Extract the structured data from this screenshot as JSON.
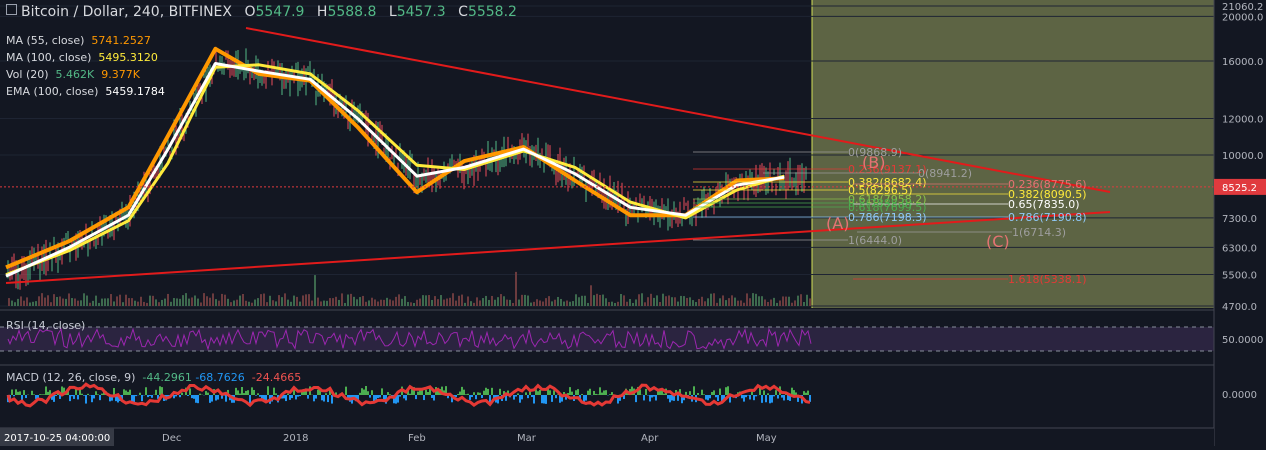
{
  "header": {
    "title": "Bitcoin / Dollar, 240, BITFINEX",
    "ohlc": [
      {
        "k": "O",
        "v": "5547.9"
      },
      {
        "k": "H",
        "v": "5588.8"
      },
      {
        "k": "L",
        "v": "5457.3"
      },
      {
        "k": "C",
        "v": "5558.2"
      }
    ]
  },
  "indicators": [
    {
      "label": "MA (55, close)",
      "values": [
        "5741.2527"
      ],
      "colors": [
        "#ff9800"
      ]
    },
    {
      "label": "MA (100, close)",
      "values": [
        "5495.3120"
      ],
      "colors": [
        "#ffeb3b"
      ]
    },
    {
      "label": "Vol (20)",
      "values": [
        "5.462K",
        "9.377K"
      ],
      "colors": [
        "#53b987",
        "#ff9800"
      ]
    },
    {
      "label": "EMA (100, close)",
      "values": [
        "5459.1784"
      ],
      "colors": [
        "#ffffff"
      ]
    }
  ],
  "rsi": {
    "label": "RSI (14, close)",
    "value_label": "50.0000"
  },
  "macd": {
    "label": "MACD (12, 26, close, 9)",
    "values": [
      "-44.2961",
      "-68.7626",
      "-24.4665"
    ],
    "colors": [
      "#53b987",
      "#2196f3",
      "#ef5350"
    ],
    "zero_label": "0.0000"
  },
  "price_axis": {
    "ticks": [
      "21060.2",
      "20000.0",
      "16000.0",
      "12000.0",
      "10000.0",
      "7300.0",
      "6300.0",
      "5500.0",
      "4700.0"
    ],
    "last_price": "8525.2"
  },
  "time_axis": {
    "first_label": "2017-10-25 04:00:00",
    "labels": [
      "Dec",
      "2018",
      "Feb",
      "Mar",
      "Apr",
      "May"
    ]
  },
  "fib_labels": [
    "0(9868.9)",
    "0.236(9137.1)",
    "0(8941.2)",
    "0.382(8682.4)",
    "0.236(8775.6)",
    "0.5(8296.5)",
    "0.382(8090.5)",
    "0.618(7958.2)",
    "0.5(7888.9)",
    "0.65(7835.0)",
    "0.618(7699.5)",
    "0.786(7198.3)",
    "0.786(7190.8)",
    "1(6714.3)",
    "1(6444.0)",
    "1.618(5338.1)"
  ],
  "wave_labels": [
    "(B)",
    "(A)",
    "(C)"
  ],
  "colors": {
    "background": "#131722",
    "accent": "#ff9800",
    "projection_fill": "#5d6444",
    "trendline": "#e21b1b",
    "last_price": "#e03a3e"
  },
  "chart_data": {
    "type": "candlestick",
    "symbol": "Bitcoin / Dollar",
    "interval": "240",
    "exchange": "BITFINEX",
    "y_scale": "log",
    "ylim": [
      4700,
      21060.2
    ],
    "x_range": [
      "2017-10-25",
      "2018-05-17"
    ],
    "series": [
      {
        "name": "MA (55, close)",
        "x": [
          "2017-10-25",
          "2017-11-10",
          "2017-11-25",
          "2017-12-05",
          "2017-12-17",
          "2017-12-28",
          "2018-01-10",
          "2018-01-22",
          "2018-02-06",
          "2018-02-18",
          "2018-03-05",
          "2018-03-18",
          "2018-04-01",
          "2018-04-15",
          "2018-04-28",
          "2018-05-10"
        ],
        "values": [
          5700,
          6500,
          7700,
          11000,
          17000,
          15000,
          14500,
          11500,
          8300,
          9700,
          10400,
          8800,
          7400,
          7400,
          8800,
          8900
        ]
      },
      {
        "name": "MA (100, close)",
        "x": [
          "2017-10-25",
          "2017-11-10",
          "2017-11-25",
          "2017-12-05",
          "2017-12-17",
          "2017-12-28",
          "2018-01-10",
          "2018-01-22",
          "2018-02-06",
          "2018-02-18",
          "2018-03-05",
          "2018-03-18",
          "2018-04-01",
          "2018-04-15",
          "2018-04-28",
          "2018-05-10"
        ],
        "values": [
          5500,
          6200,
          7200,
          9600,
          15500,
          15700,
          15000,
          12500,
          9500,
          9300,
          10200,
          9400,
          7900,
          7300,
          8400,
          9000
        ]
      },
      {
        "name": "EMA (100, close)",
        "x": [
          "2017-10-25",
          "2017-11-10",
          "2017-11-25",
          "2017-12-05",
          "2017-12-17",
          "2017-12-28",
          "2018-01-10",
          "2018-01-22",
          "2018-02-06",
          "2018-02-18",
          "2018-03-05",
          "2018-03-18",
          "2018-04-01",
          "2018-04-15",
          "2018-04-28",
          "2018-05-10"
        ],
        "values": [
          5459,
          6300,
          7400,
          10300,
          15800,
          15200,
          14600,
          12000,
          9000,
          9400,
          10300,
          9100,
          7700,
          7400,
          8600,
          8950
        ]
      }
    ],
    "last_price": 8525.2,
    "indicators": {
      "rsi_level": 50.0,
      "macd_zero": 0.0
    }
  }
}
